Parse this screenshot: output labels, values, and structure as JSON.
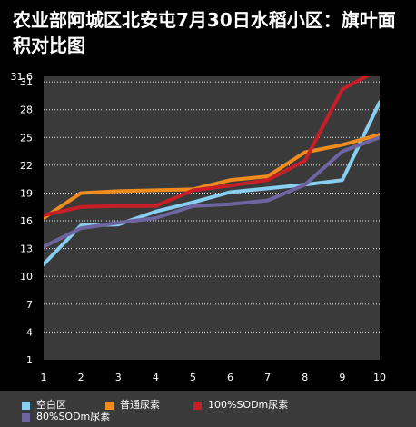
{
  "title": "农业部阿城区北安屯7月30日水稻小区：旗叶面积对比图",
  "chart_data": {
    "type": "line",
    "title": "农业部阿城区北安屯7月30日水稻小区：旗叶面积对比图",
    "xlabel": "",
    "ylabel": "",
    "x": [
      1,
      2,
      3,
      4,
      5,
      6,
      7,
      8,
      9,
      10
    ],
    "yticks": [
      1,
      4,
      7,
      10,
      13,
      16,
      19,
      22,
      25,
      28,
      31,
      31.6
    ],
    "ylim": [
      1,
      31.6
    ],
    "xlim": [
      1,
      10
    ],
    "grid": true,
    "legend_position": "bottom",
    "series": [
      {
        "name": "空白区",
        "color": "#87cef0",
        "values": [
          11.3,
          15.5,
          15.6,
          17.0,
          18.0,
          19.1,
          19.5,
          19.9,
          20.4,
          28.8
        ]
      },
      {
        "name": "普通尿素",
        "color": "#f08c1e",
        "values": [
          16.3,
          19.0,
          19.2,
          19.3,
          19.4,
          20.4,
          20.8,
          23.4,
          24.2,
          25.3
        ]
      },
      {
        "name": "100%SODm尿素",
        "color": "#c81e28",
        "values": [
          16.6,
          17.5,
          17.6,
          17.6,
          19.3,
          19.8,
          20.4,
          22.5,
          30.2,
          32.4
        ]
      },
      {
        "name": "80%SODm尿素",
        "color": "#6e64a0",
        "values": [
          13.2,
          15.2,
          15.8,
          16.3,
          17.6,
          17.8,
          18.2,
          19.9,
          23.5,
          25.0
        ]
      }
    ]
  }
}
